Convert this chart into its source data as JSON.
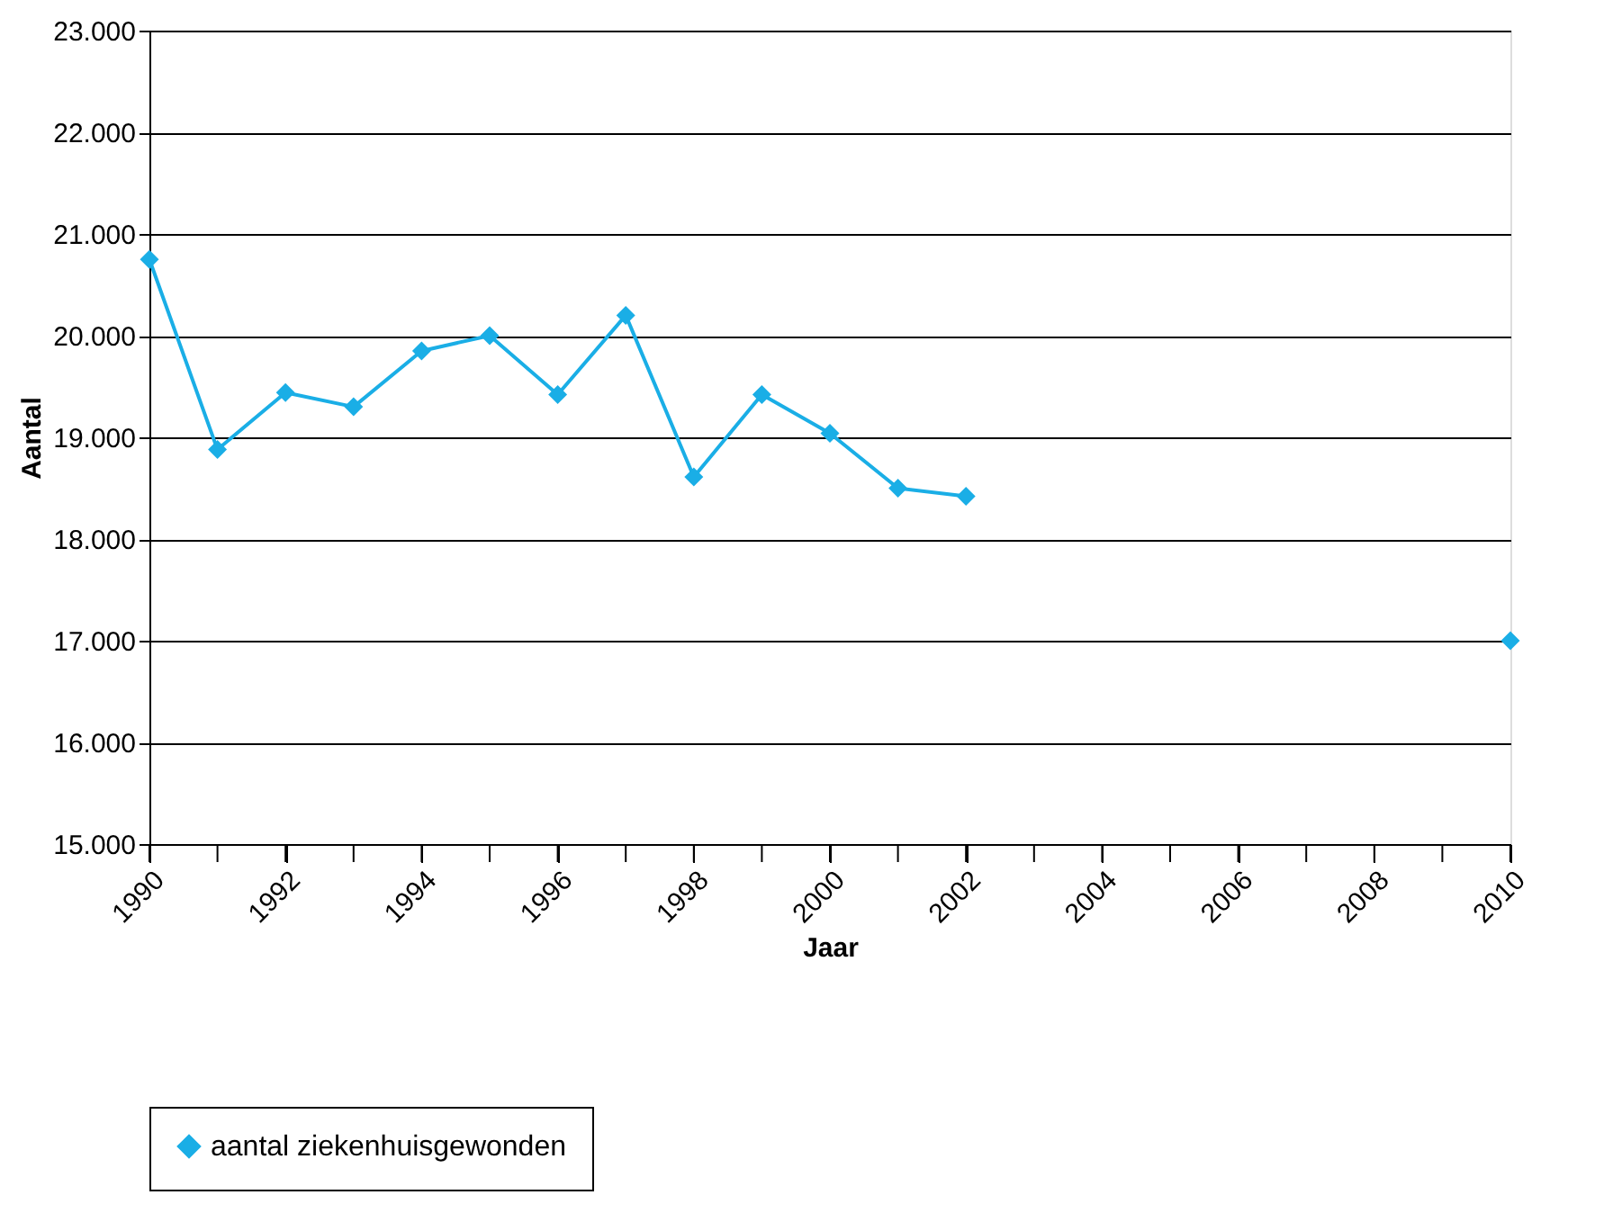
{
  "chart_data": {
    "type": "line",
    "xlabel": "Jaar",
    "ylabel": "Aantal",
    "x": [
      1990,
      1991,
      1992,
      1993,
      1994,
      1995,
      1996,
      1997,
      1998,
      1999,
      2000,
      2001,
      2002,
      2003,
      2004,
      2005,
      2006,
      2007,
      2008,
      2009,
      2010
    ],
    "series": [
      {
        "name": "aantal ziekenhuisgewonden",
        "color": "#1aaee6",
        "values": [
          20750,
          18880,
          19440,
          19300,
          19850,
          20000,
          19420,
          20200,
          18610,
          19420,
          19040,
          18500,
          18420,
          null,
          null,
          null,
          null,
          null,
          null,
          null,
          17000
        ]
      }
    ],
    "xlim": [
      1990,
      2010
    ],
    "xticks": [
      1990,
      {
        "value": 1991,
        "label": null
      },
      1992,
      {
        "value": 1993,
        "label": null
      },
      1994,
      {
        "value": 1995,
        "label": null
      },
      1996,
      {
        "value": 1997,
        "label": null
      },
      1998,
      {
        "value": 1999,
        "label": null
      },
      2000,
      {
        "value": 2001,
        "label": null
      },
      2002,
      {
        "value": 2003,
        "label": null
      },
      2004,
      {
        "value": 2005,
        "label": null
      },
      2006,
      {
        "value": 2007,
        "label": null
      },
      2008,
      {
        "value": 2009,
        "label": null
      },
      2010
    ],
    "ylim": [
      15000,
      23000
    ],
    "yticks": [
      {
        "value": 15000,
        "label": "15.000"
      },
      {
        "value": 16000,
        "label": "16.000"
      },
      {
        "value": 17000,
        "label": "17.000"
      },
      {
        "value": 18000,
        "label": "18.000"
      },
      {
        "value": 19000,
        "label": "19.000"
      },
      {
        "value": 20000,
        "label": "20.000"
      },
      {
        "value": 21000,
        "label": "21.000"
      },
      {
        "value": 22000,
        "label": "22.000"
      },
      {
        "value": 23000,
        "label": "23.000"
      }
    ],
    "grid": "y",
    "legend": "bottom",
    "marker": "diamond",
    "line_style": "solid"
  }
}
